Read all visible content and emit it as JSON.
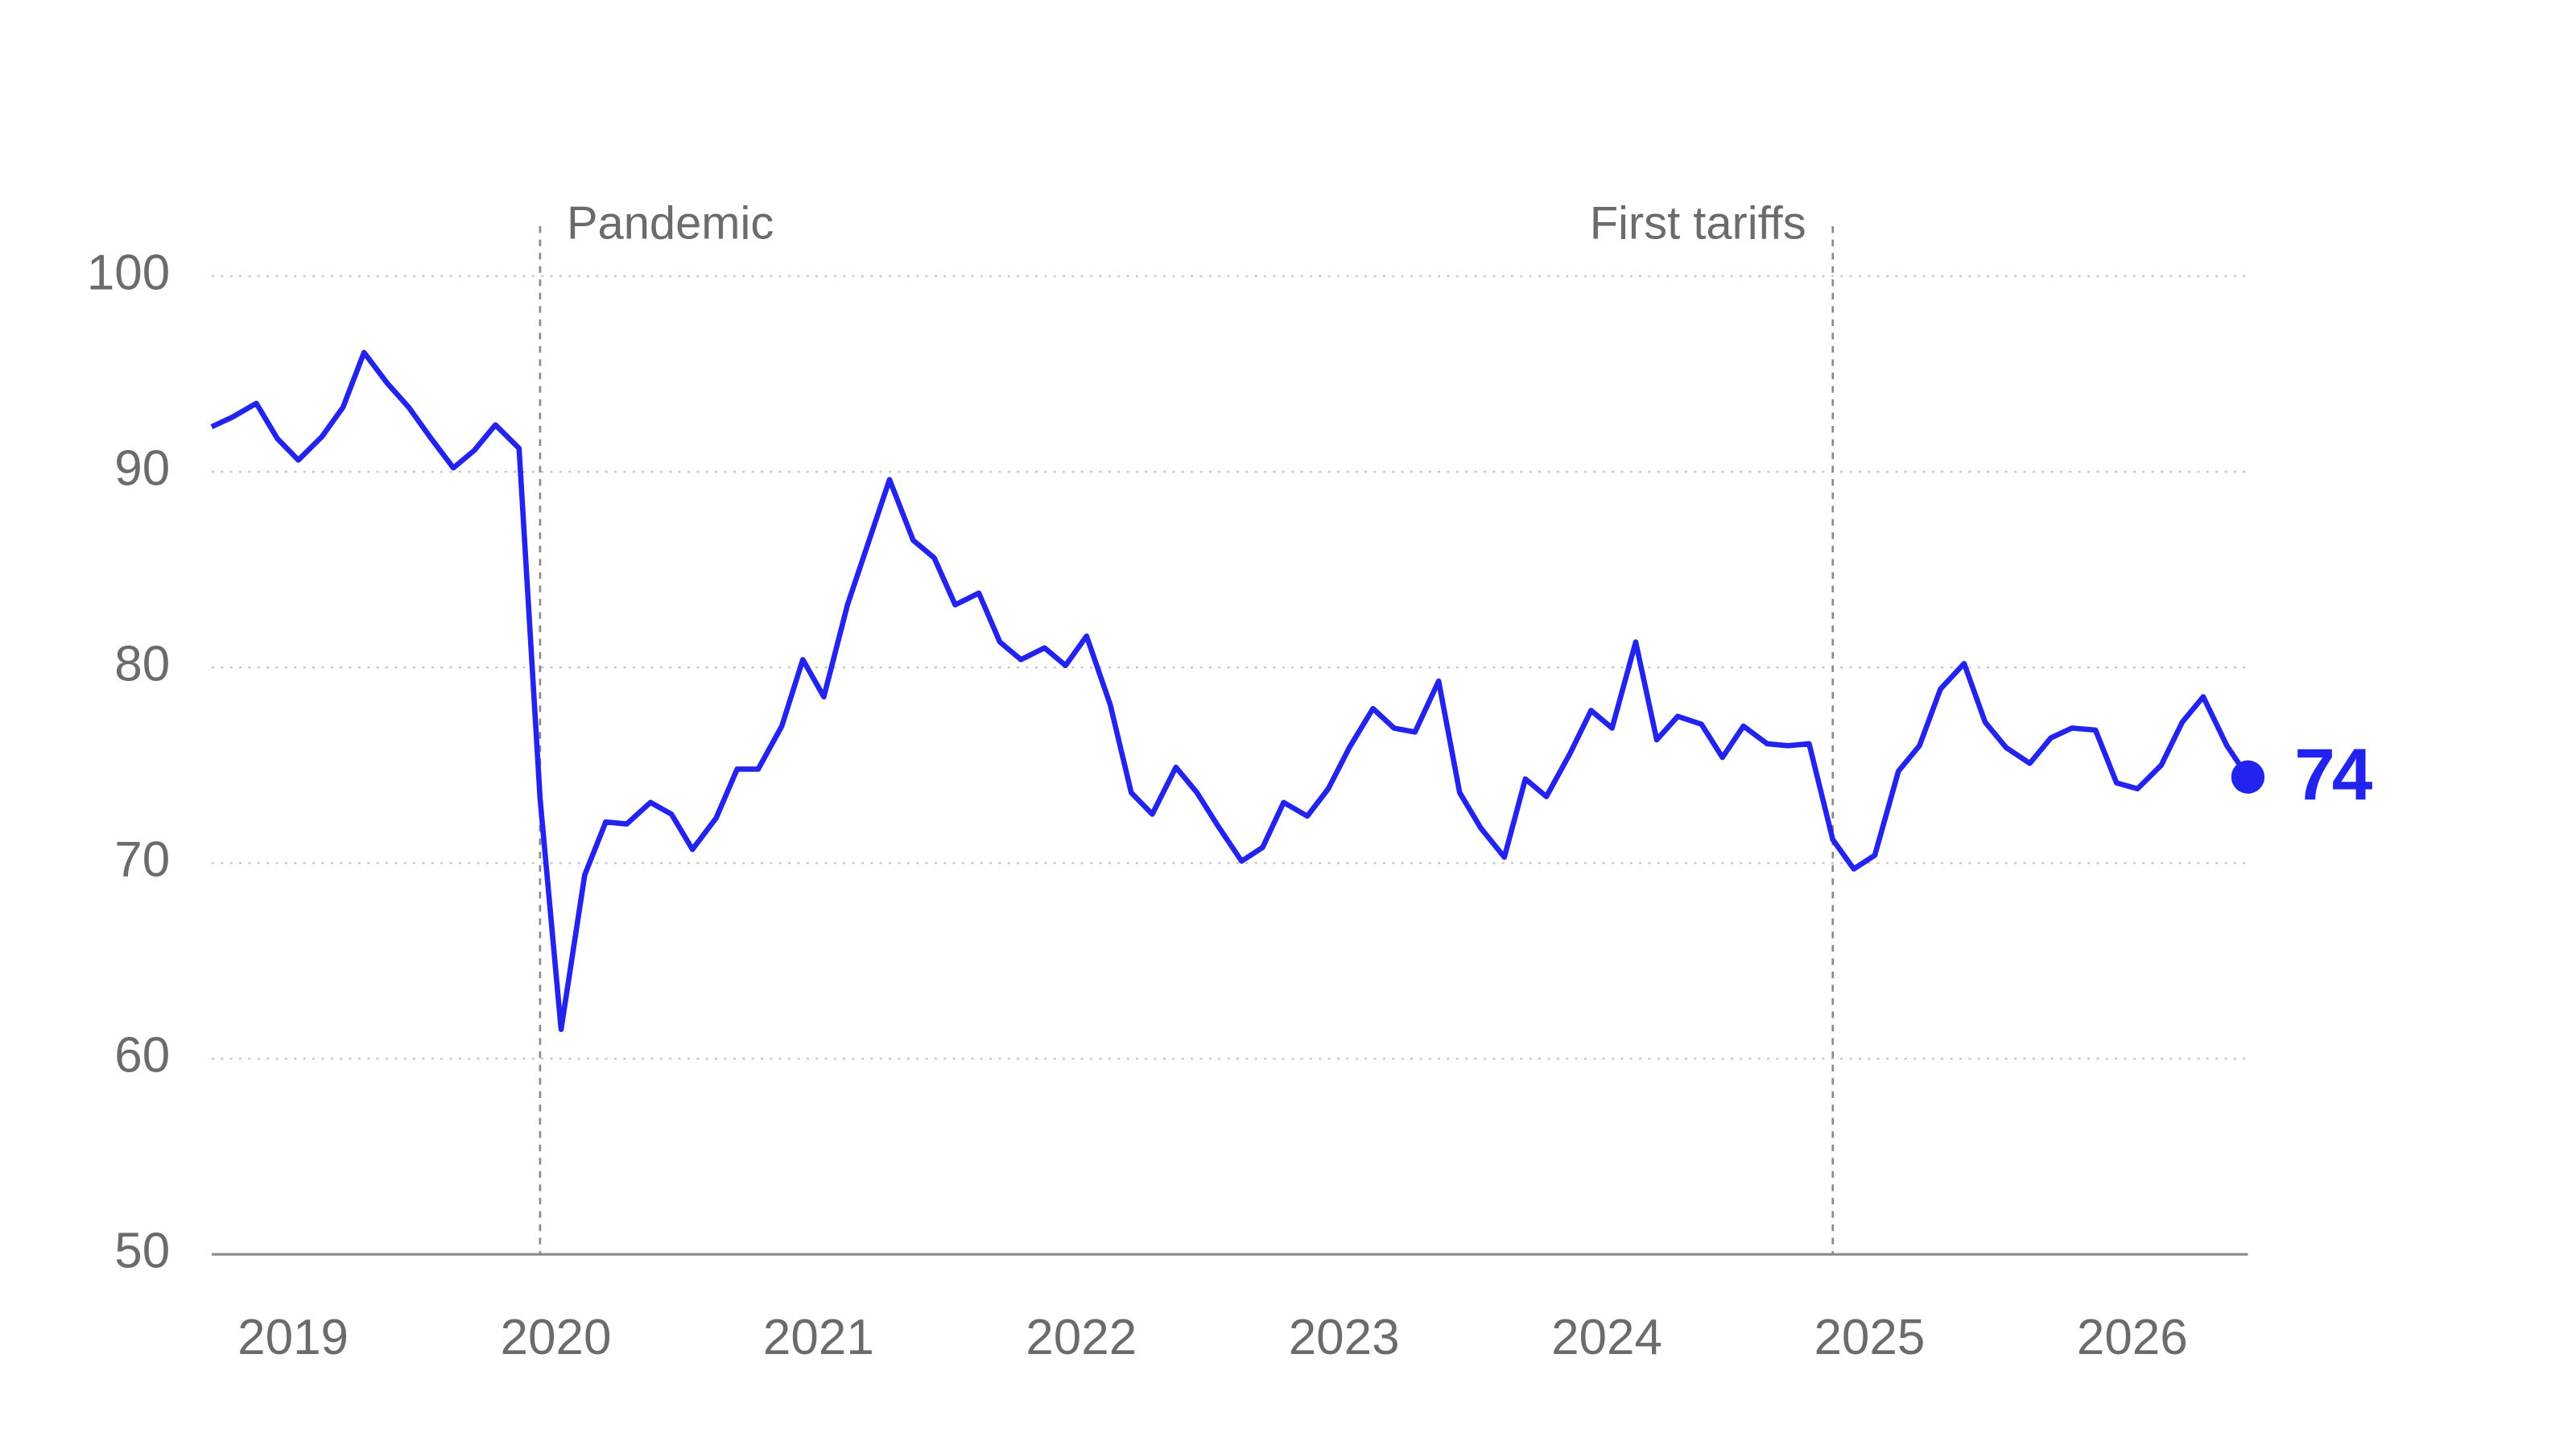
{
  "chart_data": {
    "type": "line",
    "x": [
      2018.69,
      2018.77,
      2018.86,
      2018.94,
      2019.02,
      2019.11,
      2019.19,
      2019.27,
      2019.36,
      2019.44,
      2019.52,
      2019.61,
      2019.69,
      2019.77,
      2019.86,
      2019.94,
      2020.02,
      2020.11,
      2020.19,
      2020.27,
      2020.36,
      2020.44,
      2020.52,
      2020.61,
      2020.69,
      2020.77,
      2020.86,
      2020.94,
      2021.02,
      2021.11,
      2021.19,
      2021.27,
      2021.36,
      2021.44,
      2021.52,
      2021.61,
      2021.69,
      2021.77,
      2021.86,
      2021.94,
      2022.02,
      2022.11,
      2022.19,
      2022.27,
      2022.36,
      2022.44,
      2022.52,
      2022.61,
      2022.69,
      2022.77,
      2022.86,
      2022.94,
      2023.02,
      2023.11,
      2023.19,
      2023.27,
      2023.36,
      2023.44,
      2023.52,
      2023.61,
      2023.69,
      2023.77,
      2023.86,
      2023.94,
      2024.02,
      2024.11,
      2024.19,
      2024.27,
      2024.36,
      2024.44,
      2024.52,
      2024.61,
      2024.69,
      2024.77,
      2024.86,
      2024.94,
      2025.02,
      2025.11,
      2025.19,
      2025.27,
      2025.36,
      2025.44,
      2025.52,
      2025.61,
      2025.69,
      2025.77,
      2025.86,
      2025.94,
      2026.02,
      2026.11,
      2026.19,
      2026.27,
      2026.36,
      2026.44
    ],
    "series": [
      {
        "color": "#2323f0",
        "values": [
          92.3,
          92.8,
          93.5,
          91.7,
          90.6,
          91.8,
          93.3,
          96.1,
          94.5,
          93.3,
          91.8,
          90.2,
          91.1,
          92.4,
          91.2,
          73.3,
          61.5,
          69.4,
          72.1,
          72.0,
          73.1,
          72.5,
          70.7,
          72.3,
          74.8,
          74.8,
          77.0,
          80.4,
          78.5,
          83.2,
          86.4,
          89.6,
          86.5,
          85.6,
          83.2,
          83.8,
          81.3,
          80.4,
          81.0,
          80.1,
          81.6,
          78.1,
          73.6,
          72.5,
          74.9,
          73.6,
          71.9,
          70.1,
          70.8,
          73.1,
          72.4,
          73.8,
          75.9,
          77.9,
          76.9,
          76.7,
          79.3,
          73.6,
          71.8,
          70.3,
          74.3,
          73.4,
          75.6,
          77.8,
          76.9,
          81.3,
          76.3,
          77.5,
          77.1,
          75.4,
          77.0,
          76.1,
          76.0,
          76.1,
          71.2,
          69.7,
          70.4,
          74.7,
          76.0,
          78.9,
          80.2,
          77.2,
          75.9,
          75.1,
          76.4,
          76.9,
          76.8,
          74.1,
          73.8,
          75.0,
          77.2,
          78.5,
          76.0,
          74.4
        ],
        "value_labels": [
          null,
          null,
          null,
          null,
          null,
          null,
          null,
          null,
          null,
          null,
          null,
          null,
          null,
          null,
          null,
          null,
          null,
          null,
          null,
          null,
          null,
          null,
          null,
          null,
          null,
          null,
          null,
          null,
          null,
          null,
          null,
          null,
          null,
          null,
          null,
          null,
          null,
          null,
          null,
          null,
          null,
          null,
          null,
          null,
          null,
          null,
          null,
          null,
          null,
          null,
          null,
          null,
          null,
          null,
          null,
          null,
          null,
          null,
          null,
          null,
          null,
          null,
          null,
          null,
          null,
          null,
          null,
          null,
          null,
          null,
          null,
          null,
          null,
          null,
          null,
          null,
          null,
          null,
          null,
          null,
          null,
          null,
          null,
          null,
          null,
          null,
          null,
          null,
          null,
          null,
          null,
          null,
          null,
          "74"
        ]
      }
    ],
    "xlim": [
      2018.69,
      2026.44
    ],
    "xticks": [
      2019,
      2020,
      2021,
      2022,
      2023,
      2024,
      2025,
      2026
    ],
    "ylim": [
      50,
      100
    ],
    "yticks": [
      50,
      60,
      70,
      80,
      90,
      100
    ],
    "grid": true,
    "annotations": [
      {
        "label": "Pandemic",
        "x": 2019.94
      },
      {
        "label": "First tariffs",
        "x": 2024.86
      }
    ]
  }
}
